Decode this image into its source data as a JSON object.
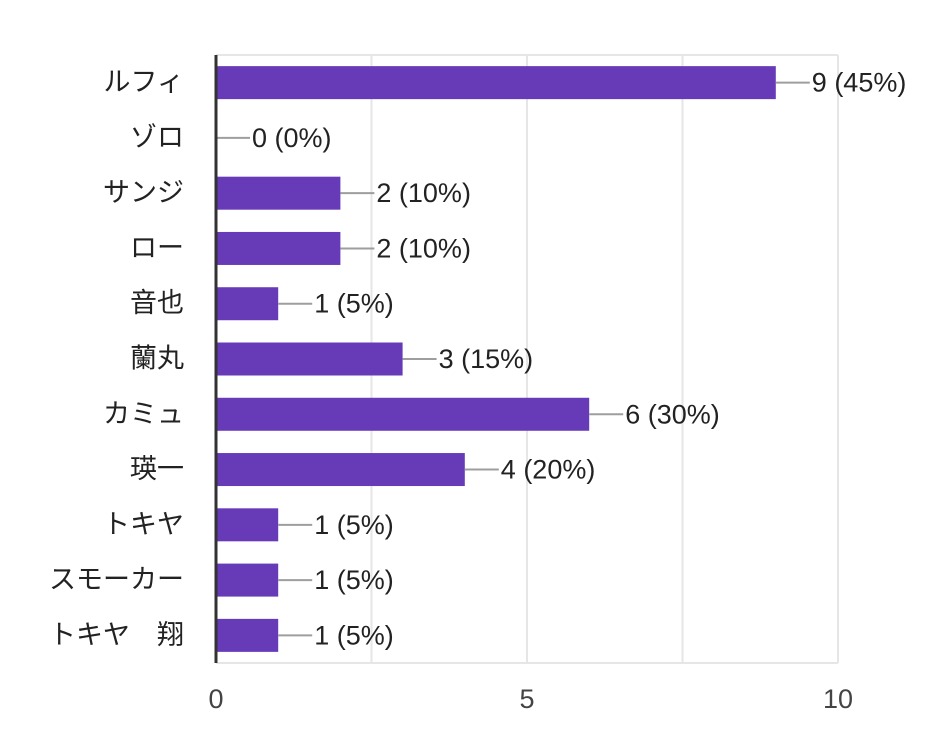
{
  "chart_data": {
    "type": "bar",
    "orientation": "horizontal",
    "categories": [
      "ルフィ",
      "ゾロ",
      "サンジ",
      "ロー",
      "音也",
      "蘭丸",
      "カミュ",
      "瑛一",
      "トキヤ",
      "スモーカー",
      "トキヤ　翔"
    ],
    "values": [
      9,
      0,
      2,
      2,
      1,
      3,
      6,
      4,
      1,
      1,
      1
    ],
    "data_labels": [
      "9 (45%)",
      "0 (0%)",
      "2 (10%)",
      "2 (10%)",
      "1 (5%)",
      "3 (15%)",
      "6 (30%)",
      "4 (20%)",
      "1 (5%)",
      "1 (5%)",
      "1 (5%)"
    ],
    "xlim": [
      0,
      10
    ],
    "x_ticks": [
      0,
      5,
      10
    ],
    "x_tick_labels": [
      "0",
      "5",
      "10"
    ],
    "grid": true,
    "title": "",
    "xlabel": "",
    "ylabel": "",
    "colors": {
      "bar": "#673ab7",
      "leader": "#9e9e9e",
      "grid": "#e6e6e6",
      "axis": "#333333"
    }
  }
}
